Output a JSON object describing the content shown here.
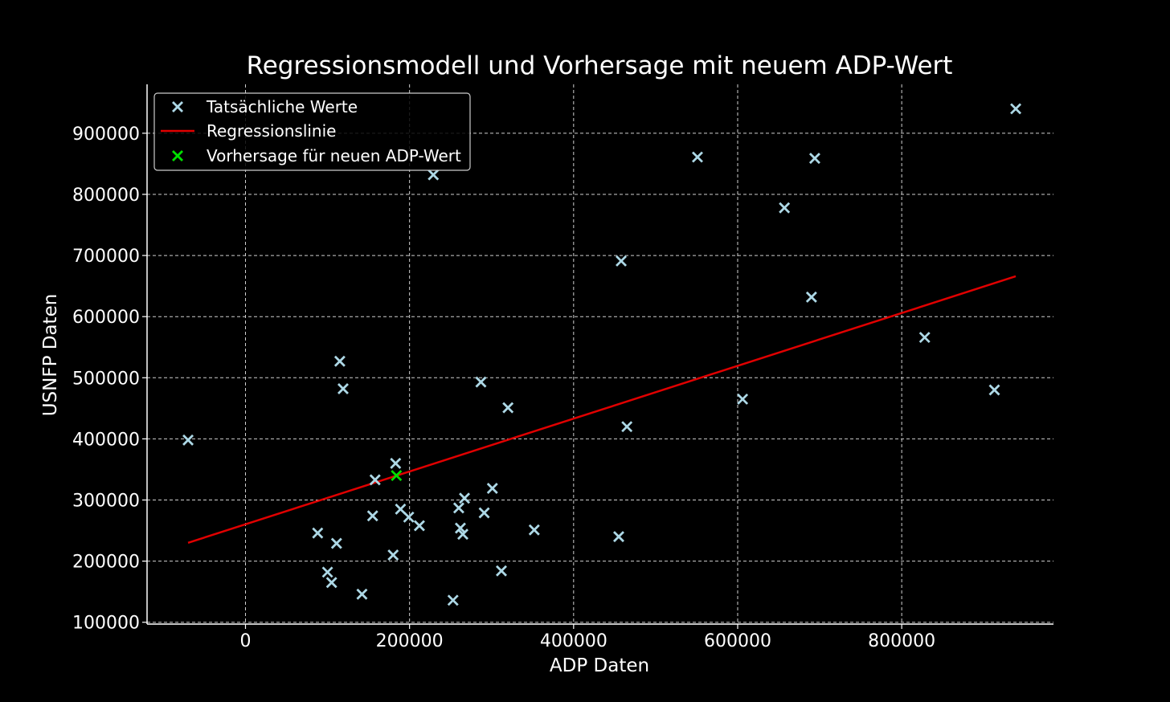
{
  "chart_data": {
    "type": "scatter",
    "title": "Regressionsmodell und Vorhersage mit neuem ADP-Wert",
    "xlabel": "ADP Daten",
    "ylabel": "USNFP Daten",
    "xlim": [
      -120000,
      985000
    ],
    "ylim": [
      97000,
      980000
    ],
    "x_ticks": [
      0,
      200000,
      400000,
      600000,
      800000
    ],
    "y_ticks": [
      100000,
      200000,
      300000,
      400000,
      500000,
      600000,
      700000,
      800000,
      900000
    ],
    "x_tick_labels": [
      "0",
      "200000",
      "400000",
      "600000",
      "800000"
    ],
    "y_tick_labels": [
      "100000",
      "200000",
      "300000",
      "400000",
      "500000",
      "600000",
      "700000",
      "800000",
      "900000"
    ],
    "grid": true,
    "legend_position": "top-left",
    "colors": {
      "background": "#000000",
      "actual": "#add8e6",
      "regression": "#e00000",
      "prediction": "#00e000",
      "text": "#ffffff"
    },
    "series": [
      {
        "name": "Tatsächliche Werte",
        "marker": "x",
        "points": [
          [
            -70000,
            398000
          ],
          [
            88000,
            246000
          ],
          [
            100000,
            182000
          ],
          [
            105000,
            165000
          ],
          [
            111000,
            229000
          ],
          [
            115000,
            527000
          ],
          [
            119000,
            482000
          ],
          [
            142000,
            146000
          ],
          [
            155000,
            274000
          ],
          [
            158000,
            333000
          ],
          [
            180000,
            210000
          ],
          [
            183000,
            360000
          ],
          [
            189000,
            285000
          ],
          [
            199000,
            272000
          ],
          [
            212000,
            258000
          ],
          [
            229000,
            832000
          ],
          [
            253000,
            136000
          ],
          [
            260000,
            287000
          ],
          [
            262000,
            254000
          ],
          [
            265000,
            244000
          ],
          [
            267000,
            303000
          ],
          [
            287000,
            493000
          ],
          [
            291000,
            279000
          ],
          [
            301000,
            319000
          ],
          [
            312000,
            184000
          ],
          [
            320000,
            451000
          ],
          [
            352000,
            251000
          ],
          [
            455000,
            240000
          ],
          [
            458000,
            691000
          ],
          [
            465000,
            420000
          ],
          [
            551000,
            861000
          ],
          [
            606000,
            465000
          ],
          [
            657000,
            778000
          ],
          [
            690000,
            632000
          ],
          [
            694000,
            859000
          ],
          [
            828000,
            566000
          ],
          [
            913000,
            480000
          ],
          [
            939000,
            940000
          ]
        ]
      },
      {
        "name": "Regressionslinie",
        "type": "line",
        "points": [
          [
            -70000,
            230000
          ],
          [
            939000,
            666000
          ]
        ]
      },
      {
        "name": "Vorhersage für neuen ADP-Wert",
        "marker": "x",
        "points": [
          [
            184000,
            340000
          ]
        ]
      }
    ]
  }
}
